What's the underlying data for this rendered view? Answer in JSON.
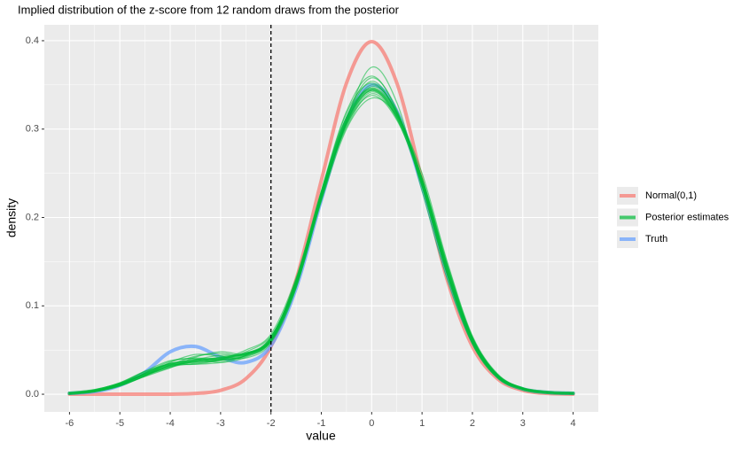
{
  "chart_data": {
    "type": "line",
    "title": "Implied distribution of the z-score from 12 random draws from the posterior",
    "x_label": "value",
    "y_label": "density",
    "x": [
      -6,
      -5.5,
      -5,
      -4.5,
      -4,
      -3.5,
      -3,
      -2.5,
      -2,
      -1.5,
      -1,
      -0.5,
      0,
      0.5,
      1,
      1.5,
      2,
      2.5,
      3,
      3.5,
      4
    ],
    "xlim": [
      -6.5,
      4.5
    ],
    "xticks": [
      -6,
      -5,
      -4,
      -3,
      -2,
      -1,
      0,
      1,
      2,
      3,
      4
    ],
    "ylim": [
      -0.02,
      0.418
    ],
    "yticks": [
      {
        "value": 0,
        "label": "0.0"
      },
      0.1,
      0.2,
      0.3,
      0.4
    ],
    "vline": -2,
    "grid": true,
    "legend": "right",
    "series": [
      {
        "name": "Normal(0,1)",
        "color": "#F8766D",
        "values": [
          0,
          0,
          0,
          0,
          0.0001,
          0.0009,
          0.0044,
          0.0175,
          0.054,
          0.1295,
          0.242,
          0.3521,
          0.3989,
          0.3521,
          0.242,
          0.1295,
          0.054,
          0.0175,
          0.0044,
          0.0009,
          0.0001
        ]
      },
      {
        "name": "Posterior estimates",
        "color": "#00BA38",
        "values": [
          0.001,
          0.004,
          0.011,
          0.022,
          0.033,
          0.038,
          0.04,
          0.045,
          0.062,
          0.125,
          0.225,
          0.31,
          0.345,
          0.315,
          0.24,
          0.14,
          0.06,
          0.02,
          0.006,
          0.002,
          0.001
        ],
        "draws": [
          [
            0.001,
            0.004,
            0.012,
            0.026,
            0.038,
            0.04,
            0.036,
            0.042,
            0.06,
            0.125,
            0.23,
            0.32,
            0.36,
            0.32,
            0.235,
            0.135,
            0.058,
            0.019,
            0.006,
            0.002,
            0.001
          ],
          [
            0.001,
            0.003,
            0.01,
            0.02,
            0.03,
            0.042,
            0.048,
            0.046,
            0.063,
            0.13,
            0.225,
            0.305,
            0.338,
            0.31,
            0.24,
            0.145,
            0.064,
            0.022,
            0.007,
            0.002,
            0.001
          ],
          [
            0.001,
            0.004,
            0.011,
            0.024,
            0.035,
            0.036,
            0.038,
            0.044,
            0.065,
            0.128,
            0.22,
            0.31,
            0.37,
            0.33,
            0.23,
            0.13,
            0.057,
            0.019,
            0.006,
            0.002,
            0.001
          ],
          [
            0.001,
            0.005,
            0.013,
            0.025,
            0.033,
            0.034,
            0.039,
            0.048,
            0.066,
            0.122,
            0.218,
            0.3,
            0.335,
            0.315,
            0.25,
            0.15,
            0.066,
            0.023,
            0.007,
            0.002,
            0.001
          ],
          [
            0.001,
            0.003,
            0.009,
            0.021,
            0.036,
            0.045,
            0.043,
            0.041,
            0.058,
            0.12,
            0.228,
            0.318,
            0.352,
            0.318,
            0.238,
            0.138,
            0.06,
            0.02,
            0.006,
            0.002,
            0.001
          ],
          [
            0.001,
            0.004,
            0.012,
            0.023,
            0.032,
            0.037,
            0.042,
            0.047,
            0.061,
            0.126,
            0.224,
            0.308,
            0.348,
            0.32,
            0.242,
            0.142,
            0.062,
            0.021,
            0.006,
            0.002,
            0.001
          ],
          [
            0.001,
            0.004,
            0.011,
            0.022,
            0.031,
            0.035,
            0.04,
            0.05,
            0.068,
            0.132,
            0.226,
            0.302,
            0.34,
            0.312,
            0.245,
            0.148,
            0.065,
            0.022,
            0.007,
            0.002,
            0.001
          ],
          [
            0.001,
            0.003,
            0.01,
            0.024,
            0.037,
            0.041,
            0.039,
            0.043,
            0.06,
            0.124,
            0.229,
            0.314,
            0.358,
            0.322,
            0.236,
            0.136,
            0.059,
            0.019,
            0.006,
            0.002,
            0.001
          ],
          [
            0.001,
            0.004,
            0.012,
            0.022,
            0.03,
            0.039,
            0.044,
            0.045,
            0.062,
            0.127,
            0.222,
            0.306,
            0.344,
            0.316,
            0.243,
            0.143,
            0.063,
            0.021,
            0.006,
            0.002,
            0.001
          ],
          [
            0.001,
            0.005,
            0.013,
            0.026,
            0.034,
            0.034,
            0.036,
            0.044,
            0.064,
            0.129,
            0.227,
            0.312,
            0.354,
            0.318,
            0.239,
            0.139,
            0.061,
            0.02,
            0.006,
            0.002,
            0.001
          ],
          [
            0.001,
            0.003,
            0.01,
            0.021,
            0.033,
            0.043,
            0.046,
            0.045,
            0.061,
            0.123,
            0.221,
            0.304,
            0.342,
            0.314,
            0.244,
            0.146,
            0.064,
            0.022,
            0.007,
            0.002,
            0.001
          ],
          [
            0.001,
            0.004,
            0.011,
            0.023,
            0.035,
            0.038,
            0.041,
            0.046,
            0.062,
            0.126,
            0.226,
            0.309,
            0.35,
            0.318,
            0.24,
            0.14,
            0.061,
            0.02,
            0.006,
            0.002,
            0.001
          ]
        ]
      },
      {
        "name": "Truth",
        "color": "#619CFF",
        "values": [
          0.001,
          0.003,
          0.01,
          0.025,
          0.048,
          0.054,
          0.042,
          0.036,
          0.055,
          0.12,
          0.22,
          0.31,
          0.35,
          0.32,
          0.235,
          0.135,
          0.06,
          0.02,
          0.006,
          0.002,
          0.001
        ]
      }
    ]
  }
}
